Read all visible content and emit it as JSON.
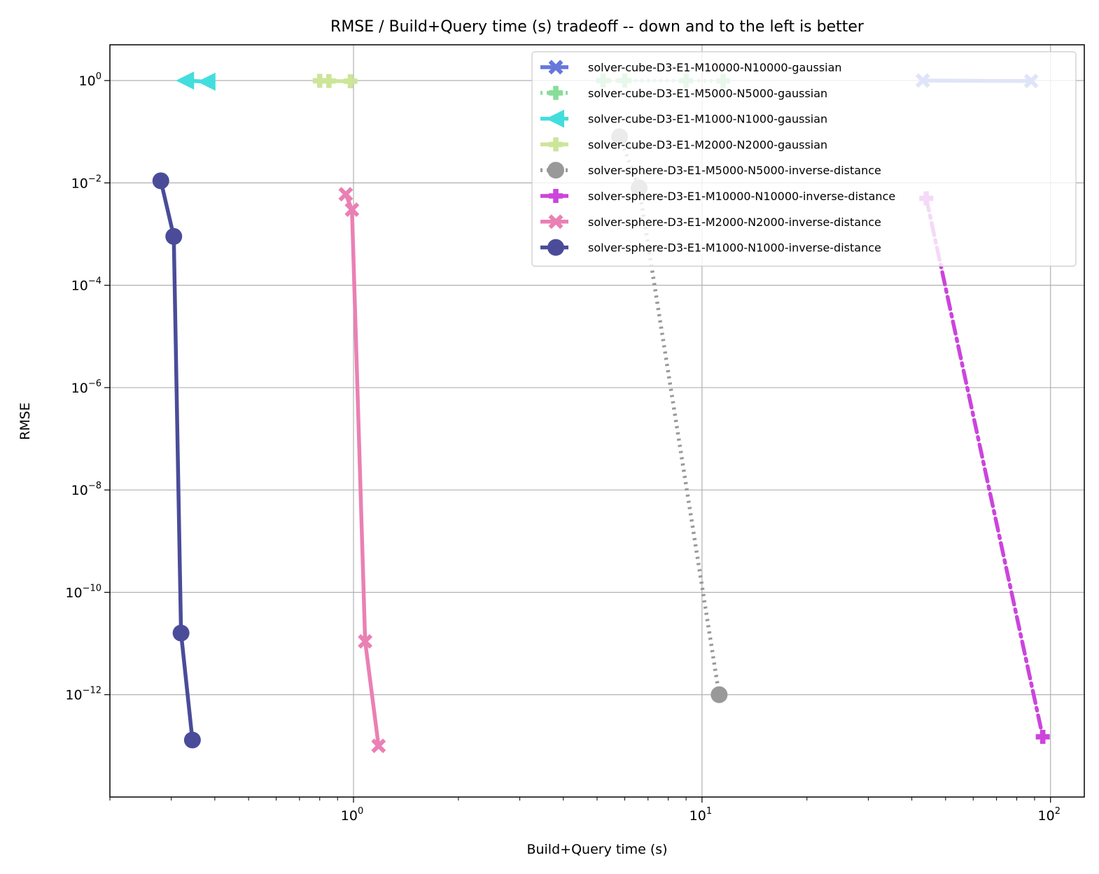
{
  "chart_data": {
    "type": "line",
    "title": "RMSE / Build+Query time (s) tradeoff -- down and to the left is better",
    "xlabel": "Build+Query time (s)",
    "ylabel": "RMSE",
    "xscale": "log",
    "yscale": "log",
    "xlim": [
      0.2,
      125
    ],
    "ylim": [
      1e-14,
      5
    ],
    "grid": true,
    "legend_position": "top-right",
    "x_ticks": [
      {
        "value": 1,
        "base": "10",
        "exp": "0"
      },
      {
        "value": 10,
        "base": "10",
        "exp": "1"
      },
      {
        "value": 100,
        "base": "10",
        "exp": "2"
      }
    ],
    "y_ticks": [
      {
        "value": 1,
        "base": "10",
        "exp": "0"
      },
      {
        "value": 0.01,
        "base": "10",
        "exp": "−2"
      },
      {
        "value": 0.0001,
        "base": "10",
        "exp": "−4"
      },
      {
        "value": 1e-06,
        "base": "10",
        "exp": "−6"
      },
      {
        "value": 1e-08,
        "base": "10",
        "exp": "−8"
      },
      {
        "value": 1e-10,
        "base": "10",
        "exp": "−10"
      },
      {
        "value": 1e-12,
        "base": "10",
        "exp": "−12"
      }
    ],
    "series": [
      {
        "name": "solver-cube-D3-E1-M10000-N10000-gaussian",
        "color": "#6677dd",
        "marker": "X",
        "dash": "solid",
        "points": [
          [
            43,
            1.0
          ],
          [
            88,
            0.98
          ]
        ]
      },
      {
        "name": "solver-cube-D3-E1-M5000-N5000-gaussian",
        "color": "#88dd99",
        "marker": "P",
        "dash": "dotted",
        "points": [
          [
            5.2,
            1.0
          ],
          [
            6.0,
            1.0
          ],
          [
            9.0,
            0.99
          ],
          [
            11.5,
            0.98
          ]
        ]
      },
      {
        "name": "solver-cube-D3-E1-M1000-N1000-gaussian",
        "color": "#44dddd",
        "marker": "<",
        "dash": "solid",
        "points": [
          [
            0.33,
            1.0
          ],
          [
            0.38,
            0.95
          ]
        ]
      },
      {
        "name": "solver-cube-D3-E1-M2000-N2000-gaussian",
        "color": "#cce599",
        "marker": "P",
        "dash": "solid",
        "points": [
          [
            0.8,
            0.99
          ],
          [
            0.85,
            0.98
          ],
          [
            0.98,
            0.97
          ]
        ]
      },
      {
        "name": "solver-sphere-D3-E1-M5000-N5000-inverse-distance",
        "color": "#999999",
        "marker": "o",
        "dash": "dotted",
        "points": [
          [
            5.8,
            0.08
          ],
          [
            6.6,
            0.008
          ],
          [
            11.2,
            1e-12
          ]
        ]
      },
      {
        "name": "solver-sphere-D3-E1-M10000-N10000-inverse-distance",
        "color": "#cc44dd",
        "marker": "P",
        "dash": "dashdot",
        "points": [
          [
            44,
            0.005
          ],
          [
            95,
            1.5e-13
          ]
        ]
      },
      {
        "name": "solver-sphere-D3-E1-M2000-N2000-inverse-distance",
        "color": "#ea80b4",
        "marker": "X",
        "dash": "solid",
        "points": [
          [
            0.95,
            0.006
          ],
          [
            0.99,
            0.003
          ],
          [
            1.08,
            1.1e-11
          ],
          [
            1.18,
            1e-13
          ]
        ]
      },
      {
        "name": "solver-sphere-D3-E1-M1000-N1000-inverse-distance",
        "color": "#4a4c99",
        "marker": "o",
        "dash": "solid",
        "points": [
          [
            0.28,
            0.011
          ],
          [
            0.305,
            0.0009
          ],
          [
            0.32,
            1.6e-11
          ],
          [
            0.345,
            1.3e-13
          ]
        ]
      }
    ]
  }
}
